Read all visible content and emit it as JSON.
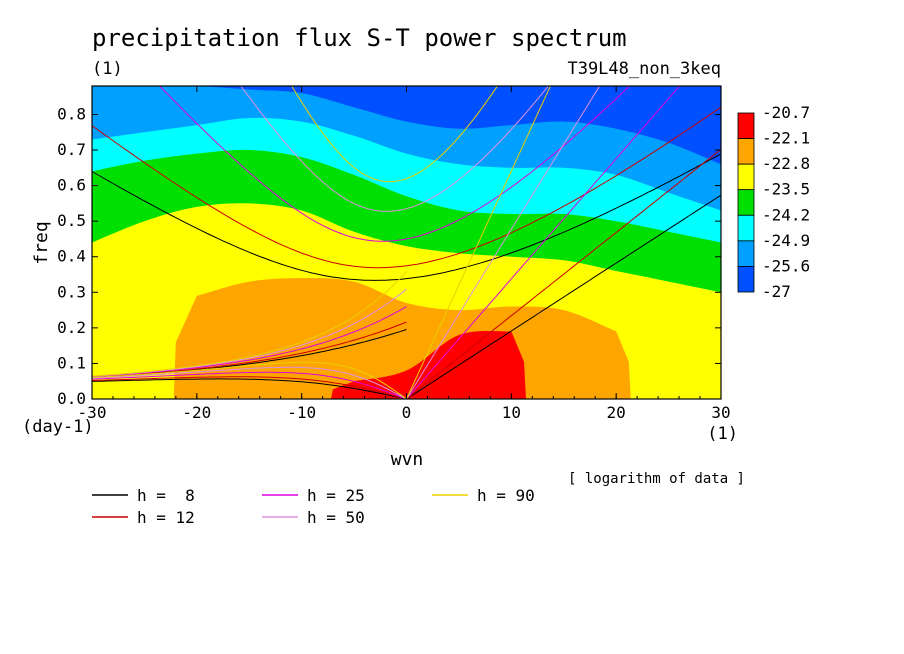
{
  "chart_data": {
    "type": "heatmap",
    "title": "precipitation flux S-T power spectrum",
    "subtitle_left": "(1)",
    "subtitle_right": "T39L48_non_3keq",
    "xlabel": "wvn",
    "ylabel": "freq",
    "x_unit_label": "(1)",
    "y_unit_label": "(day-1)",
    "xlim": [
      -30,
      30
    ],
    "ylim": [
      0,
      0.88
    ],
    "xticks": [
      -30,
      -20,
      -10,
      0,
      10,
      20,
      30
    ],
    "xtick_labels": [
      "-30",
      "-20",
      "-10",
      "0",
      "10",
      "20",
      "30"
    ],
    "yticks": [
      0,
      0.1,
      0.2,
      0.3,
      0.4,
      0.5,
      0.6,
      0.7,
      0.8
    ],
    "ytick_labels": [
      "0.0",
      "0.1",
      "0.2",
      "0.3",
      "0.4",
      "0.5",
      "0.6",
      "0.7",
      "0.8"
    ],
    "note": "[ logarithm of data ]",
    "colorbar": {
      "levels": [
        "-20.7",
        "-22.1",
        "-22.8",
        "-23.5",
        "-24.2",
        "-24.9",
        "-25.6",
        "-27"
      ],
      "colors": [
        "#ff0000",
        "#ffa500",
        "#ffff00",
        "#00e000",
        "#00ffff",
        "#00a0ff",
        "#0050ff"
      ]
    },
    "bands": {
      "comment": "upper boundary (freq) of each filled level region as a function of wavenumber",
      "x": [
        -30,
        -25,
        -20,
        -15,
        -10,
        -5,
        0,
        5,
        10,
        15,
        20,
        25,
        30
      ],
      "top_of_level": [
        {
          "color": "#0050ff",
          "y": [
            0.88,
            0.88,
            0.88,
            0.88,
            0.88,
            0.88,
            0.88,
            0.88,
            0.88,
            0.88,
            0.88,
            0.88,
            0.88
          ]
        },
        {
          "color": "#00a0ff",
          "y": [
            0.88,
            0.88,
            0.88,
            0.87,
            0.86,
            0.82,
            0.78,
            0.76,
            0.77,
            0.78,
            0.76,
            0.72,
            0.66
          ]
        },
        {
          "color": "#00ffff",
          "y": [
            0.73,
            0.75,
            0.77,
            0.79,
            0.78,
            0.74,
            0.69,
            0.66,
            0.65,
            0.65,
            0.63,
            0.58,
            0.53
          ]
        },
        {
          "color": "#00e000",
          "y": [
            0.64,
            0.67,
            0.69,
            0.7,
            0.68,
            0.63,
            0.57,
            0.53,
            0.52,
            0.52,
            0.5,
            0.47,
            0.44
          ]
        },
        {
          "color": "#ffff00",
          "y": [
            0.44,
            0.5,
            0.54,
            0.55,
            0.53,
            0.47,
            0.43,
            0.41,
            0.4,
            0.39,
            0.36,
            0.33,
            0.3
          ]
        },
        {
          "color": "#ffa500",
          "y": [
            0.0,
            0.0,
            0.29,
            0.33,
            0.34,
            0.33,
            0.27,
            0.25,
            0.26,
            0.25,
            0.19,
            0.0,
            0.0
          ]
        },
        {
          "color": "#ff0000",
          "y": [
            0.0,
            0.0,
            0.0,
            0.0,
            0.0,
            0.05,
            0.08,
            0.18,
            0.19,
            0.0,
            0.0,
            0.0,
            0.0
          ]
        }
      ]
    },
    "dispersion_curves": [
      {
        "label": "h =  8",
        "h": 8,
        "color": "#000000"
      },
      {
        "label": "h = 12",
        "h": 12,
        "color": "#cc0000"
      },
      {
        "label": "h = 25",
        "h": 25,
        "color": "#e000e0"
      },
      {
        "label": "h = 50",
        "h": 50,
        "color": "#e090e0"
      },
      {
        "label": "h = 90",
        "h": 90,
        "color": "#e8d000"
      }
    ]
  }
}
